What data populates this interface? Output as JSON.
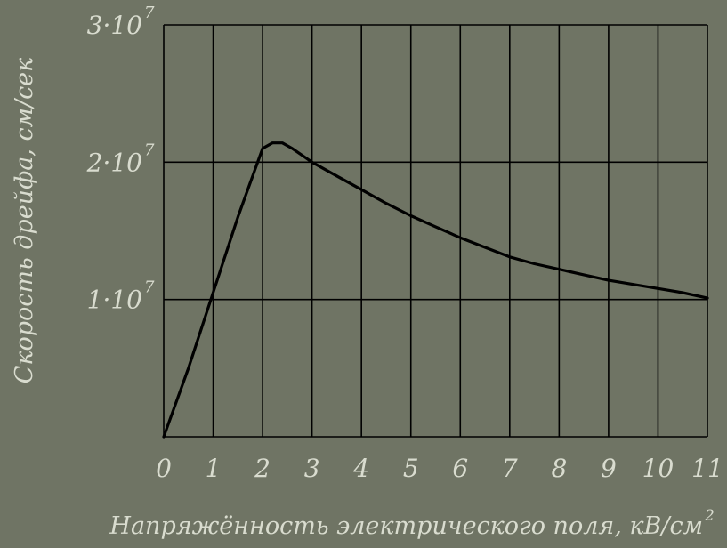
{
  "chart_data": {
    "type": "line",
    "title": "",
    "xlabel": "Напряжённость электрического поля, кВ/см",
    "xlabel_superscript": "2",
    "ylabel": "Скорость дрейфа, см/сек",
    "xlim": [
      0,
      11
    ],
    "ylim": [
      0,
      30000000
    ],
    "grid": true,
    "x_ticks": [
      "0",
      "1",
      "2",
      "3",
      "4",
      "5",
      "6",
      "7",
      "8",
      "9",
      "10",
      "11"
    ],
    "y_ticks": [
      {
        "value": 10000000,
        "mantissa": "1·10",
        "exponent": "7"
      },
      {
        "value": 20000000,
        "mantissa": "2·10",
        "exponent": "7"
      },
      {
        "value": 30000000,
        "mantissa": "3·10",
        "exponent": "7"
      }
    ],
    "series": [
      {
        "x": [
          0,
          0.5,
          1.0,
          1.5,
          2.0,
          2.2,
          2.4,
          2.6,
          2.8,
          3.0,
          3.5,
          4.0,
          4.5,
          5.0,
          5.5,
          6.0,
          6.5,
          7.0,
          7.5,
          8.0,
          8.5,
          9.0,
          9.5,
          10.0,
          10.5,
          11.0
        ],
        "y": [
          0,
          5000000,
          10500000,
          16000000,
          21000000,
          21400000,
          21400000,
          21000000,
          20500000,
          20000000,
          19000000,
          18000000,
          17000000,
          16100000,
          15300000,
          14500000,
          13800000,
          13100000,
          12600000,
          12200000,
          11800000,
          11400000,
          11100000,
          10800000,
          10500000,
          10100000
        ]
      }
    ],
    "colors": {
      "background": "#6f7464",
      "line": "#000000",
      "grid": "#000000",
      "text": "#d9dccf"
    }
  }
}
